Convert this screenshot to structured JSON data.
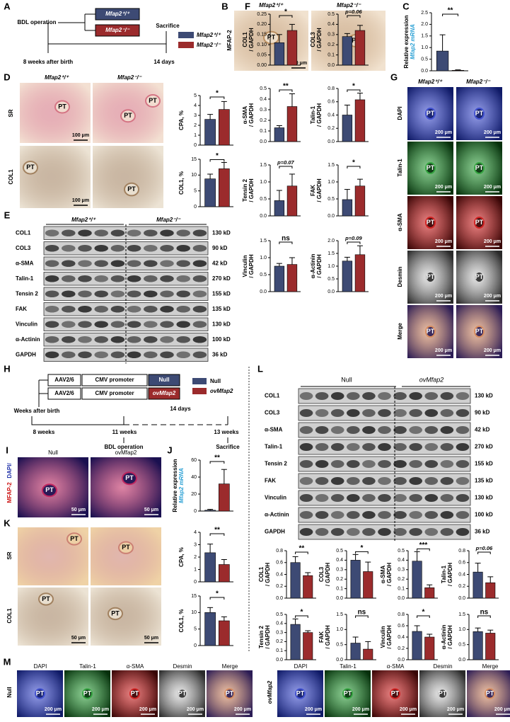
{
  "groups": {
    "wt": "Mfap2⁺/⁺",
    "ko": "Mfap2⁻/⁻",
    "null": "Null",
    "ov": "ovMfap2"
  },
  "colors": {
    "control": "#3d4a74",
    "treated": "#9b2b2c",
    "highlight": "#2aa0d4"
  },
  "labels": {
    "pt": "PT",
    "scale100": "100 μm",
    "scale200": "200 μm",
    "scale50": "50 μm"
  },
  "a": {
    "letter": "A",
    "bdl": "BDL operation",
    "sacrifice": "Sacrifice",
    "start": "8 weeks after birth",
    "duration": "14 days"
  },
  "b": {
    "letter": "B",
    "stain": "MFAP-2"
  },
  "c": {
    "letter": "C"
  },
  "d": {
    "letter": "D",
    "rows": [
      "SR",
      "COL1"
    ]
  },
  "e": {
    "letter": "E",
    "proteins": [
      "COL1",
      "COL3",
      "α-SMA",
      "Talin-1",
      "Tensin 2",
      "FAK",
      "Vinculin",
      "α-Actinin",
      "GAPDH"
    ],
    "sizes": [
      "130 kD",
      "90 kD",
      "42 kD",
      "270 kD",
      "155 kD",
      "135 kD",
      "130 kD",
      "100 kD",
      "36 kD"
    ]
  },
  "f": {
    "letter": "F"
  },
  "g": {
    "letter": "G",
    "rows": [
      "DAPI",
      "Talin-1",
      "α-SMA",
      "Desmin",
      "Merge"
    ]
  },
  "h": {
    "letter": "H",
    "vector": "AAV2/6",
    "promoter": "CMV promoter",
    "start": "Weeks after birth",
    "t0": "8 weeks",
    "t1": "11 weeks",
    "t2": "13 weeks",
    "duration": "14 days",
    "bdl": "BDL operation",
    "sacrifice": "Sacrifice"
  },
  "i": {
    "letter": "I",
    "stain": [
      "DAPI/",
      "MFAP-2"
    ]
  },
  "j": {
    "letter": "J"
  },
  "k": {
    "letter": "K",
    "rows": [
      "SR",
      "COL1"
    ]
  },
  "l": {
    "letter": "L"
  },
  "m": {
    "letter": "M",
    "stains": [
      "DAPI",
      "Talin-1",
      "α-SMA",
      "Desmin",
      "Merge"
    ]
  },
  "charts": [
    {
      "type": "bar",
      "ylabel": [
        "Relative expression",
        "Mfap2 mRNA"
      ],
      "ylabel_highlight": 1,
      "ylim": [
        0,
        2.5
      ],
      "yticks": [
        {
          "value": 0,
          "label": "0.0"
        },
        0.5,
        {
          "value": 1,
          "label": "1.0"
        },
        1.5,
        {
          "value": 2,
          "label": "2.0"
        },
        2.5
      ],
      "values": [
        0.85,
        0.02
      ],
      "errors": [
        0.7,
        0.02
      ],
      "sig": "**"
    },
    {
      "type": "bar",
      "ylabel": [
        "CPA, %"
      ],
      "ylim": [
        0,
        5
      ],
      "yticks": [
        0,
        1,
        2,
        3,
        4,
        5
      ],
      "values": [
        2.6,
        3.6
      ],
      "errors": [
        0.5,
        0.8
      ],
      "sig": "*"
    },
    {
      "type": "bar",
      "ylabel": [
        "COL1, %"
      ],
      "ylim": [
        0,
        15
      ],
      "yticks": [
        0,
        5,
        10,
        15
      ],
      "values": [
        8.8,
        12
      ],
      "errors": [
        1.5,
        2
      ],
      "sig": "*"
    },
    {
      "type": "bar",
      "ylabel": [
        "COL1",
        "/ GAPDH"
      ],
      "ylim": [
        0,
        0.25
      ],
      "yticks": [
        {
          "value": 0,
          "label": "0.00"
        },
        0.05,
        {
          "value": 0.1,
          "label": "0.10"
        },
        0.15,
        {
          "value": 0.2,
          "label": "0.20"
        },
        0.25
      ],
      "values": [
        0.11,
        0.17
      ],
      "errors": [
        0.04,
        0.03
      ],
      "sig": "*"
    },
    {
      "type": "bar",
      "ylabel": [
        "COL3",
        "/ GAPDH"
      ],
      "ylim": [
        0,
        0.5
      ],
      "yticks": [
        {
          "value": 0,
          "label": "0.0"
        },
        0.1,
        0.2,
        0.3,
        0.4,
        0.5
      ],
      "values": [
        0.28,
        0.34
      ],
      "errors": [
        0.03,
        0.05
      ],
      "sig": "p=0.06"
    },
    {
      "type": "bar",
      "ylabel": [
        "α-SMA",
        "/ GAPDH"
      ],
      "ylim": [
        0,
        0.5
      ],
      "yticks": [
        {
          "value": 0,
          "label": "0.0"
        },
        0.1,
        0.2,
        0.3,
        0.4,
        0.5
      ],
      "values": [
        0.13,
        0.33
      ],
      "errors": [
        0.02,
        0.12
      ],
      "sig": "**"
    },
    {
      "type": "bar",
      "ylabel": [
        "Talin-1",
        "/ GAPDH"
      ],
      "ylim": [
        0,
        0.8
      ],
      "yticks": [
        {
          "value": 0,
          "label": "0.0"
        },
        0.2,
        0.4,
        0.6,
        0.8
      ],
      "values": [
        0.4,
        0.63
      ],
      "errors": [
        0.15,
        0.1
      ],
      "sig": "*"
    },
    {
      "type": "bar",
      "ylabel": [
        "Tensin 2",
        "/ GAPDH"
      ],
      "ylim": [
        0,
        1.5
      ],
      "yticks": [
        {
          "value": 0,
          "label": "0.0"
        },
        0.5,
        {
          "value": 1,
          "label": "1.0"
        },
        1.5
      ],
      "values": [
        0.45,
        0.88
      ],
      "errors": [
        0.3,
        0.35
      ],
      "sig": "p=0.07"
    },
    {
      "type": "bar",
      "ylabel": [
        "FAK",
        "/ GAPDH"
      ],
      "ylim": [
        0,
        1.5
      ],
      "yticks": [
        {
          "value": 0,
          "label": "0.0"
        },
        0.5,
        {
          "value": 1,
          "label": "1.0"
        },
        1.5
      ],
      "values": [
        0.48,
        0.88
      ],
      "errors": [
        0.3,
        0.2
      ],
      "sig": "*"
    },
    {
      "type": "bar",
      "ylabel": [
        "Vinculin",
        "/ GAPDH"
      ],
      "ylim": [
        0,
        1.5
      ],
      "yticks": [
        {
          "value": 0,
          "label": "0.0"
        },
        0.5,
        {
          "value": 1,
          "label": "1.0"
        },
        1.5
      ],
      "values": [
        0.75,
        0.8
      ],
      "errors": [
        0.08,
        0.2
      ],
      "sig": "ns"
    },
    {
      "type": "bar",
      "ylabel": [
        "α-Actinin",
        "/ GAPDH"
      ],
      "ylim": [
        0,
        2
      ],
      "yticks": [
        {
          "value": 0,
          "label": "0.0"
        },
        0.5,
        {
          "value": 1,
          "label": "1.0"
        },
        1.5,
        {
          "value": 2,
          "label": "2.0"
        }
      ],
      "values": [
        1.2,
        1.45
      ],
      "errors": [
        0.15,
        0.35
      ],
      "sig": "p=0.09"
    },
    {
      "type": "bar",
      "ylabel": [
        "Relative expression",
        "Mfap2 mRNA"
      ],
      "ylabel_highlight": 1,
      "ylim": [
        0,
        60
      ],
      "yticks": [
        0,
        20,
        40,
        60
      ],
      "values": [
        1,
        32
      ],
      "errors": [
        1,
        17
      ],
      "sig": "**"
    },
    {
      "type": "bar",
      "ylabel": [
        "CPA, %"
      ],
      "ylim": [
        0,
        4
      ],
      "yticks": [
        0,
        1,
        2,
        3,
        4
      ],
      "values": [
        2.35,
        1.4
      ],
      "errors": [
        0.7,
        0.4
      ],
      "sig": "**"
    },
    {
      "type": "bar",
      "ylabel": [
        "COL1, %"
      ],
      "ylim": [
        0,
        15
      ],
      "yticks": [
        0,
        5,
        10,
        15
      ],
      "values": [
        10,
        7.5
      ],
      "errors": [
        1.5,
        1.2
      ],
      "sig": "*"
    },
    {
      "type": "bar",
      "ylabel": [
        "COL1",
        "/ GAPDH"
      ],
      "ylim": [
        0,
        0.8
      ],
      "yticks": [
        {
          "value": 0,
          "label": "0.0"
        },
        0.2,
        0.4,
        0.6,
        0.8
      ],
      "values": [
        0.6,
        0.38
      ],
      "errors": [
        0.1,
        0.05
      ],
      "sig": "**"
    },
    {
      "type": "bar",
      "ylabel": [
        "COL3",
        "/ GAPDH"
      ],
      "ylim": [
        0,
        0.5
      ],
      "yticks": [
        {
          "value": 0,
          "label": "0.0"
        },
        0.1,
        0.2,
        0.3,
        0.4,
        0.5
      ],
      "values": [
        0.4,
        0.28
      ],
      "errors": [
        0.06,
        0.1
      ],
      "sig": "*"
    },
    {
      "type": "bar",
      "ylabel": [
        "α-SMA",
        "/ GAPDH"
      ],
      "ylim": [
        0,
        0.5
      ],
      "yticks": [
        {
          "value": 0,
          "label": "0.0"
        },
        0.1,
        0.2,
        0.3,
        0.4,
        0.5
      ],
      "values": [
        0.39,
        0.11
      ],
      "errors": [
        0.1,
        0.03
      ],
      "sig": "***"
    },
    {
      "type": "bar",
      "ylabel": [
        "Talin-1",
        "/ GAPDH"
      ],
      "ylim": [
        0,
        0.8
      ],
      "yticks": [
        {
          "value": 0,
          "label": "0.0"
        },
        0.2,
        0.4,
        0.6,
        0.8
      ],
      "values": [
        0.44,
        0.26
      ],
      "errors": [
        0.15,
        0.1
      ],
      "sig": "p=0.06"
    },
    {
      "type": "bar",
      "ylabel": [
        "Tensin 2",
        "/ GAPDH"
      ],
      "ylim": [
        0,
        0.5
      ],
      "yticks": [
        {
          "value": 0,
          "label": "0.0"
        },
        0.1,
        0.2,
        0.3,
        0.4,
        0.5
      ],
      "values": [
        0.39,
        0.3
      ],
      "errors": [
        0.06,
        0.02
      ],
      "sig": "*"
    },
    {
      "type": "bar",
      "ylabel": [
        "FAK",
        "/ GAPDH"
      ],
      "ylim": [
        0,
        1.5
      ],
      "yticks": [
        {
          "value": 0,
          "label": "0.0"
        },
        0.5,
        {
          "value": 1,
          "label": "1.0"
        },
        1.5
      ],
      "values": [
        0.55,
        0.35
      ],
      "errors": [
        0.2,
        0.25
      ],
      "sig": "ns"
    },
    {
      "type": "bar",
      "ylabel": [
        "Vinculin",
        "/ GAPDH"
      ],
      "ylim": [
        0,
        0.8
      ],
      "yticks": [
        {
          "value": 0,
          "label": "0.0"
        },
        0.2,
        0.4,
        0.6,
        0.8
      ],
      "values": [
        0.5,
        0.4
      ],
      "errors": [
        0.1,
        0.05
      ],
      "sig": "*"
    },
    {
      "type": "bar",
      "ylabel": [
        "α-Actinin",
        "/ GAPDH"
      ],
      "ylim": [
        0,
        1.5
      ],
      "yticks": [
        {
          "value": 0,
          "label": "0.0"
        },
        0.5,
        {
          "value": 1,
          "label": "1.0"
        },
        1.5
      ],
      "values": [
        0.93,
        0.88
      ],
      "errors": [
        0.12,
        0.1
      ],
      "sig": "ns"
    }
  ]
}
